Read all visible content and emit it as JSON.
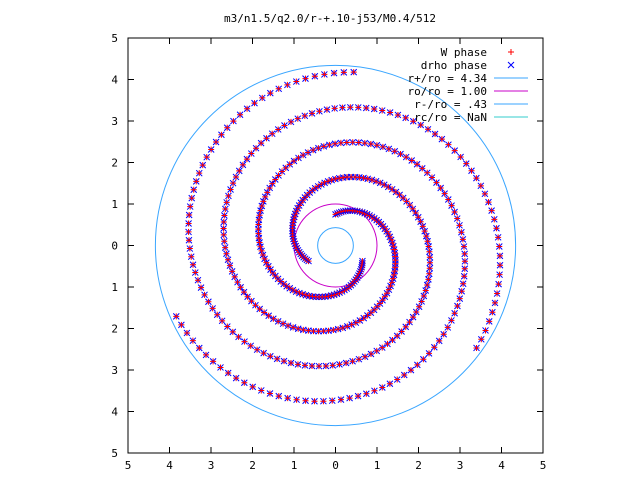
{
  "chart_data": {
    "type": "scatter",
    "title": "m3/n1.5/q2.0/r-+.10-j53/M0.4/512",
    "xlabel": "",
    "ylabel": "",
    "xlim": [
      -5,
      5
    ],
    "ylim": [
      -5,
      5
    ],
    "x_ticks": [
      {
        "value": -5,
        "label": "5"
      },
      {
        "value": -4,
        "label": "4"
      },
      {
        "value": -3,
        "label": "3"
      },
      {
        "value": -2,
        "label": "2"
      },
      {
        "value": -1,
        "label": "1"
      },
      {
        "value": 0,
        "label": "0"
      },
      {
        "value": 1,
        "label": "1"
      },
      {
        "value": 2,
        "label": "2"
      },
      {
        "value": 3,
        "label": "3"
      },
      {
        "value": 4,
        "label": "4"
      },
      {
        "value": 5,
        "label": "5"
      }
    ],
    "y_ticks": [
      {
        "value": 5,
        "label": "5"
      },
      {
        "value": 4,
        "label": "4"
      },
      {
        "value": 3,
        "label": "3"
      },
      {
        "value": 2,
        "label": "2"
      },
      {
        "value": 1,
        "label": "1"
      },
      {
        "value": 0,
        "label": "0"
      },
      {
        "value": -1,
        "label": "1"
      },
      {
        "value": -2,
        "label": "2"
      },
      {
        "value": -3,
        "label": "3"
      },
      {
        "value": -4,
        "label": "4"
      },
      {
        "value": -5,
        "label": "5"
      }
    ],
    "grid": false,
    "legend_position": "top-right",
    "legend": [
      {
        "label": "W phase",
        "marker": "plus",
        "color": "#ff0000"
      },
      {
        "label": "drho phase",
        "marker": "cross",
        "color": "#0000ff"
      },
      {
        "label": "r+/ro = 4.34",
        "marker": "line",
        "color": "#3aa6ff"
      },
      {
        "label": "ro/ro = 1.00",
        "marker": "line",
        "color": "#c800c8"
      },
      {
        "label": "r-/ro = .43",
        "marker": "line",
        "color": "#3aa6ff"
      },
      {
        "label": "rc/ro = NaN",
        "marker": "line",
        "color": "#33cccc"
      }
    ],
    "circles": [
      {
        "name": "r+/ro = 4.34",
        "radius": 4.34,
        "color": "#3aa6ff"
      },
      {
        "name": "ro/ro = 1.00",
        "radius": 1.0,
        "color": "#c800c8"
      },
      {
        "name": "r-/ro = .43",
        "radius": 0.43,
        "color": "#3aa6ff"
      }
    ],
    "spiral": {
      "arms": 3,
      "inner_radius": 0.75,
      "outer_radius": 4.2,
      "turns": 1.35,
      "rotation_sense": "clockwise-outward",
      "w_phase_color": "#ff0000",
      "drho_phase_color": "#0000ff"
    }
  }
}
